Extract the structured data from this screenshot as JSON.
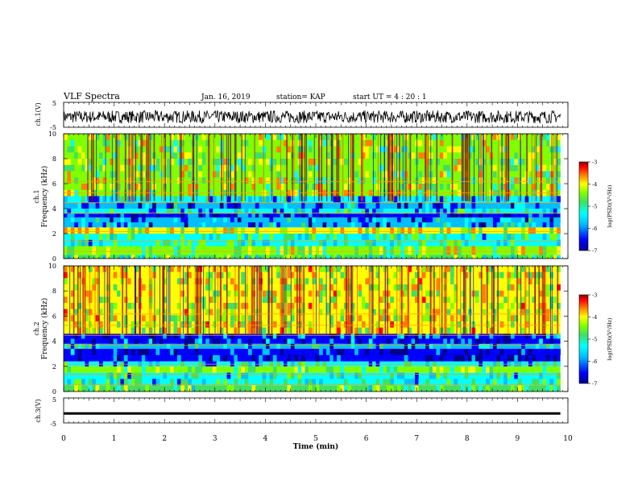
{
  "header": {
    "title": "VLF Spectra",
    "date": "Jan. 16, 2019",
    "station": "station= KAP",
    "start_time": "start  UT =   4 : 20 : 1"
  },
  "colors": {
    "spectrogram_scale": [
      "#00008b",
      "#0000ff",
      "#00bfff",
      "#00ffff",
      "#40e060",
      "#80ff00",
      "#ffff00",
      "#ff8000",
      "#ff0000",
      "#8b0000"
    ],
    "waveform": "#000000"
  },
  "chart_data": [
    {
      "type": "line",
      "panel": "ch1-waveform",
      "ylabel": "ch.1(V)",
      "ylim": [
        -5,
        5
      ],
      "yticks": [
        "5",
        "-5"
      ],
      "xlim": [
        0,
        10
      ],
      "mean_level": -0.8,
      "noise_amplitude": 2.5
    },
    {
      "type": "heatmap",
      "panel": "ch1-spectrogram",
      "ylabel": "ch.1\nFrequency (kHz)",
      "ylim": [
        0,
        10
      ],
      "yticks": [
        "0",
        "2",
        "4",
        "6",
        "8",
        "10"
      ],
      "xlim": [
        0,
        9.85
      ],
      "colorbar": {
        "label": "log(PSD)(V²/Hz)",
        "range": [
          -7,
          -3
        ],
        "ticks": [
          "-3",
          "-4",
          "-5",
          "-6",
          "-7"
        ]
      },
      "bands_khz": [
        {
          "from": 0.0,
          "to": 0.3,
          "level": 0.45
        },
        {
          "from": 0.3,
          "to": 1.0,
          "level": 0.55
        },
        {
          "from": 1.0,
          "to": 2.0,
          "level": 0.38
        },
        {
          "from": 2.0,
          "to": 2.5,
          "level": 0.62
        },
        {
          "from": 2.5,
          "to": 3.3,
          "level": 0.2
        },
        {
          "from": 3.3,
          "to": 3.6,
          "level": 0.06
        },
        {
          "from": 3.6,
          "to": 4.0,
          "level": 0.3
        },
        {
          "from": 4.0,
          "to": 4.5,
          "level": 0.18
        },
        {
          "from": 4.5,
          "to": 5.0,
          "level": 0.3
        },
        {
          "from": 5.0,
          "to": 10.0,
          "level": 0.56
        }
      ]
    },
    {
      "type": "heatmap",
      "panel": "ch2-spectrogram",
      "ylabel": "ch.2\nFrequency (kHz)",
      "ylim": [
        0,
        10
      ],
      "yticks": [
        "0",
        "2",
        "4",
        "6",
        "8",
        "10"
      ],
      "xlim": [
        0,
        9.85
      ],
      "colorbar": {
        "label": "log(PSD)(V²/Hz)",
        "range": [
          -7,
          -3
        ],
        "ticks": [
          "-3",
          "-4",
          "-5",
          "-6",
          "-7"
        ]
      },
      "bands_khz": [
        {
          "from": 0.0,
          "to": 0.5,
          "level": 0.48
        },
        {
          "from": 0.5,
          "to": 1.5,
          "level": 0.36
        },
        {
          "from": 1.5,
          "to": 2.0,
          "level": 0.5
        },
        {
          "from": 2.0,
          "to": 2.4,
          "level": 0.3
        },
        {
          "from": 2.4,
          "to": 3.4,
          "level": 0.06
        },
        {
          "from": 3.4,
          "to": 3.8,
          "level": 0.25
        },
        {
          "from": 3.8,
          "to": 4.6,
          "level": 0.1
        },
        {
          "from": 4.6,
          "to": 10.0,
          "level": 0.62
        }
      ]
    },
    {
      "type": "line",
      "panel": "ch3-waveform",
      "ylabel": "ch.3(V)",
      "ylim": [
        -5,
        5
      ],
      "yticks": [
        "5",
        "-5"
      ],
      "xlim": [
        0,
        10
      ],
      "mean_level": -1.2,
      "noise_amplitude": 0.15
    }
  ],
  "x_axis": {
    "label": "Time (min)",
    "ticks": [
      "0",
      "1",
      "2",
      "3",
      "4",
      "5",
      "6",
      "7",
      "8",
      "9",
      "10"
    ],
    "range": [
      0,
      10
    ]
  }
}
